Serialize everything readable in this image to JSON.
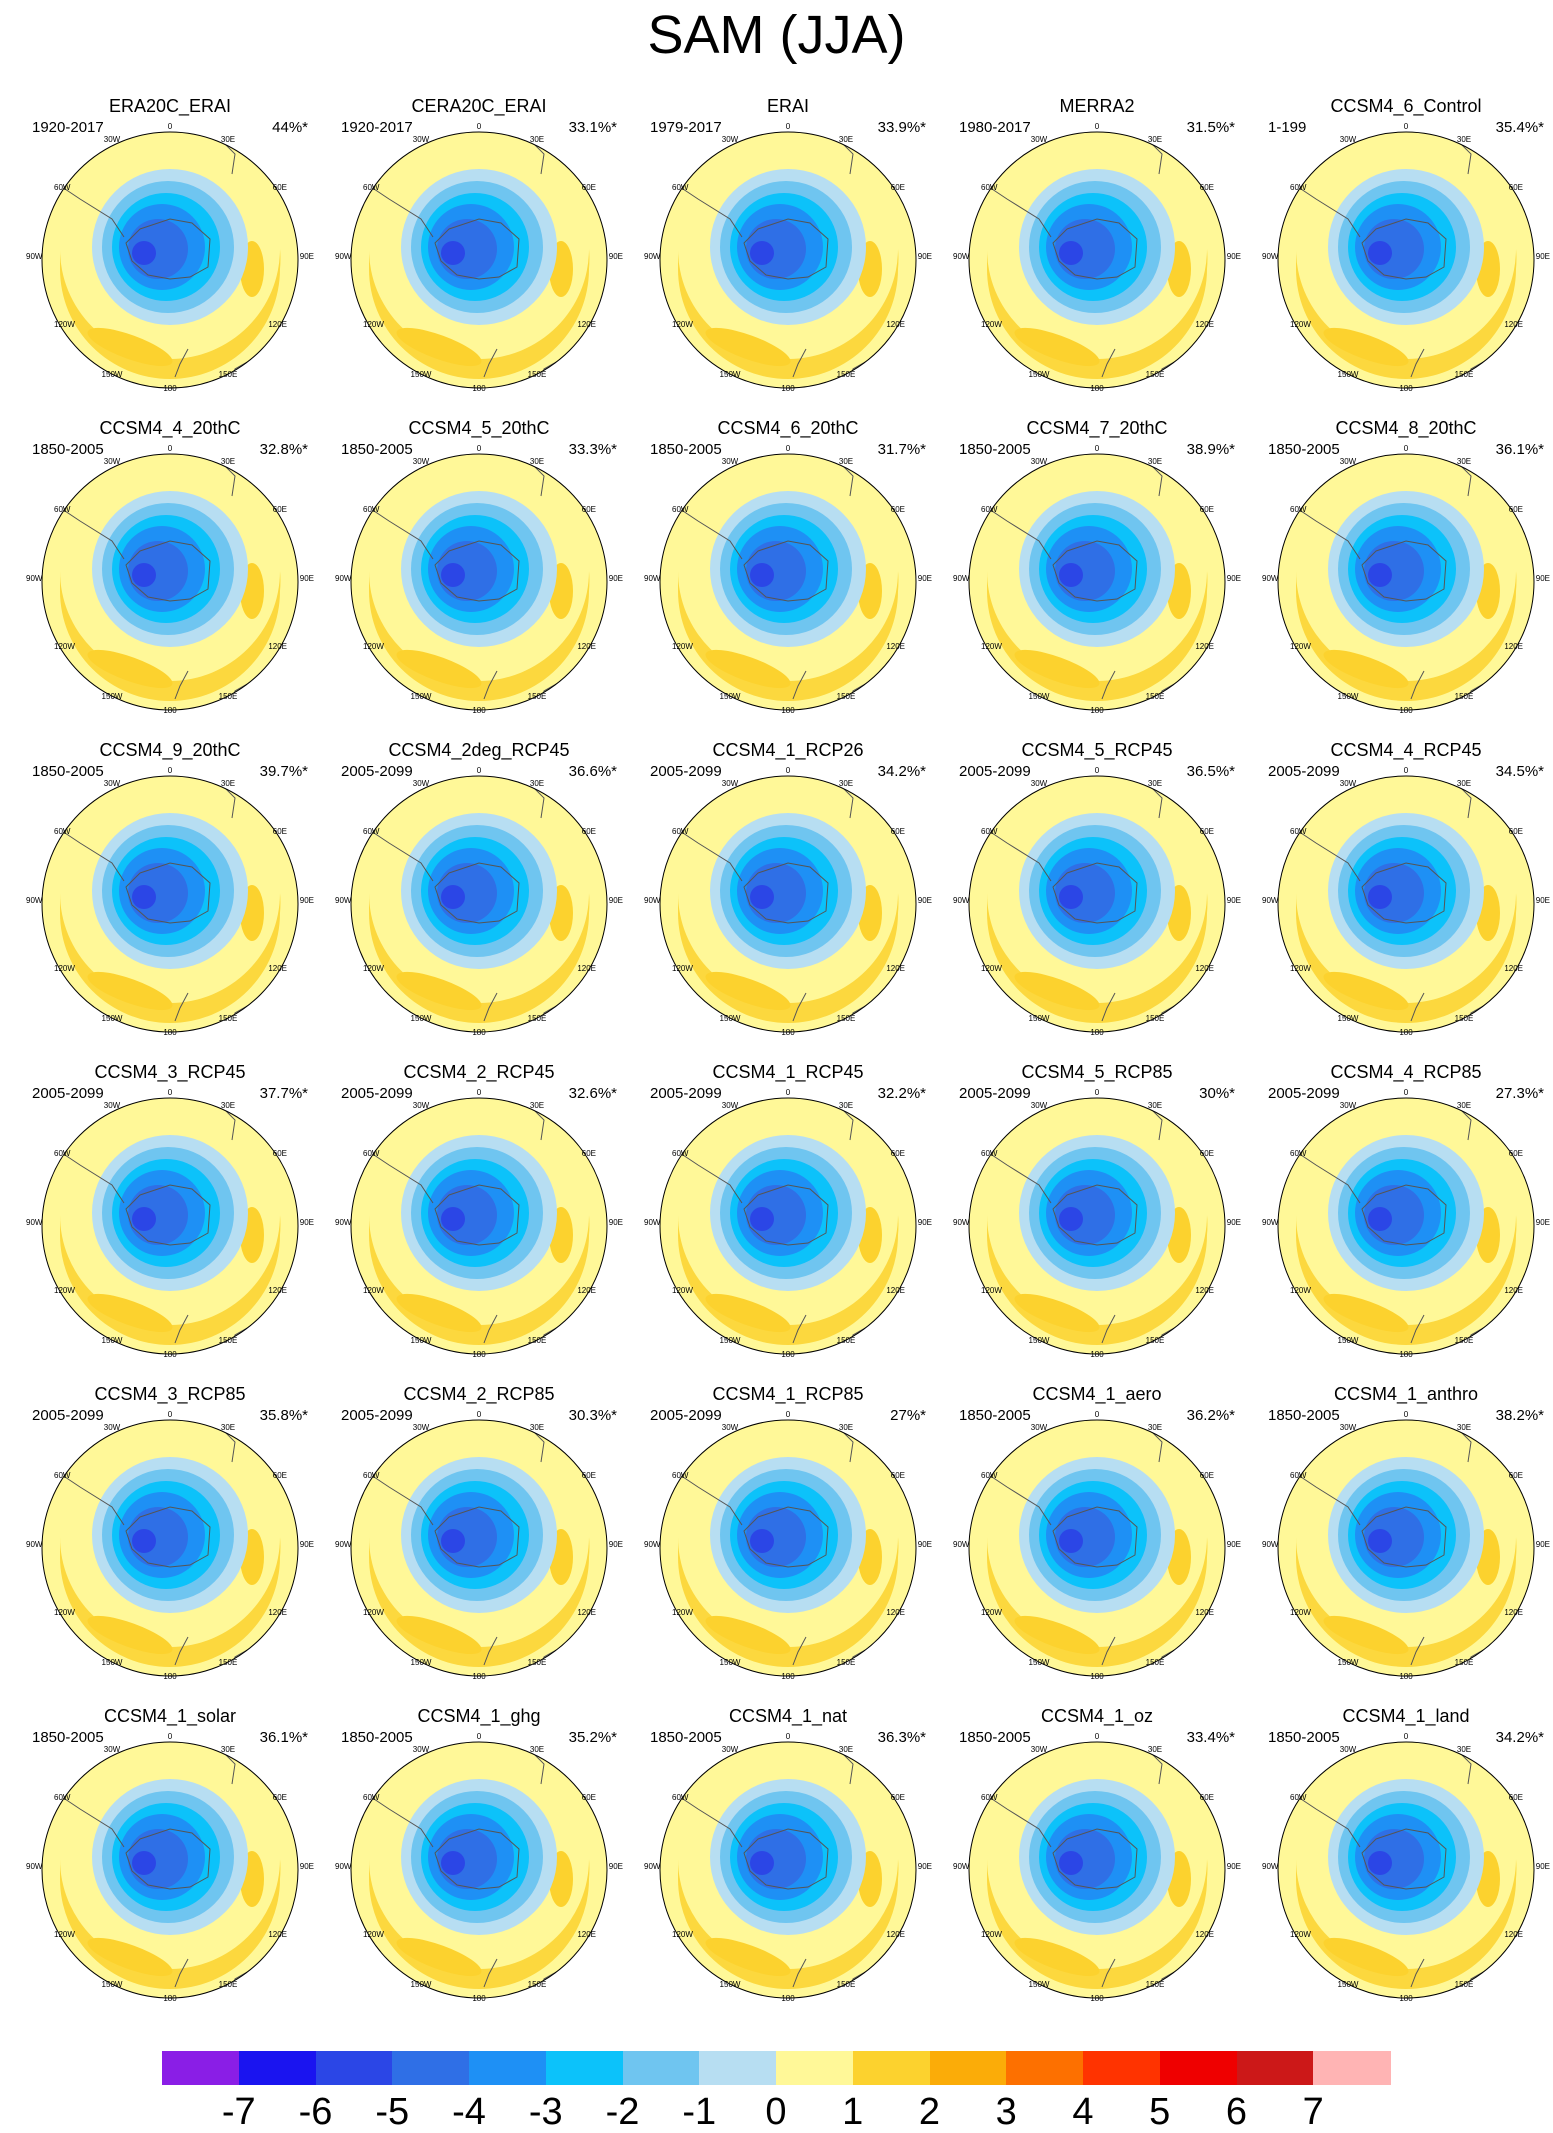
{
  "title": "SAM (JJA)",
  "palette": [
    "#8a1ee6",
    "#1a14f0",
    "#2b46e6",
    "#2f6fe6",
    "#1e90f5",
    "#0cc2fa",
    "#6fc5f0",
    "#b7def2",
    "#fff898",
    "#fcd22e",
    "#fbac08",
    "#fd7000",
    "#ff3300",
    "#ef0000",
    "#cc1818",
    "#ffb4b4"
  ],
  "colorbar": {
    "labels": [
      "-7",
      "-6",
      "-5",
      "-4",
      "-3",
      "-2",
      "-1",
      "0",
      "1",
      "2",
      "3",
      "4",
      "5",
      "6",
      "7"
    ]
  },
  "map_labels": {
    "top": "0",
    "top_left": "30W",
    "top_right": "30E",
    "left_upper": "60W",
    "right_upper": "60E",
    "left": "90W",
    "right": "90E",
    "left_lower": "120W",
    "right_lower": "120E",
    "bottom_left": "150W",
    "bottom_right": "150E",
    "bottom": "180"
  },
  "panels": [
    {
      "name": "ERA20C_ERAI",
      "period": "1920-2017",
      "variance": "44%*"
    },
    {
      "name": "CERA20C_ERAI",
      "period": "1920-2017",
      "variance": "33.1%*"
    },
    {
      "name": "ERAI",
      "period": "1979-2017",
      "variance": "33.9%*"
    },
    {
      "name": "MERRA2",
      "period": "1980-2017",
      "variance": "31.5%*"
    },
    {
      "name": "CCSM4_6_Control",
      "period": "1-199",
      "variance": "35.4%*"
    },
    {
      "name": "CCSM4_4_20thC",
      "period": "1850-2005",
      "variance": "32.8%*"
    },
    {
      "name": "CCSM4_5_20thC",
      "period": "1850-2005",
      "variance": "33.3%*"
    },
    {
      "name": "CCSM4_6_20thC",
      "period": "1850-2005",
      "variance": "31.7%*"
    },
    {
      "name": "CCSM4_7_20thC",
      "period": "1850-2005",
      "variance": "38.9%*"
    },
    {
      "name": "CCSM4_8_20thC",
      "period": "1850-2005",
      "variance": "36.1%*"
    },
    {
      "name": "CCSM4_9_20thC",
      "period": "1850-2005",
      "variance": "39.7%*"
    },
    {
      "name": "CCSM4_2deg_RCP45",
      "period": "2005-2099",
      "variance": "36.6%*"
    },
    {
      "name": "CCSM4_1_RCP26",
      "period": "2005-2099",
      "variance": "34.2%*"
    },
    {
      "name": "CCSM4_5_RCP45",
      "period": "2005-2099",
      "variance": "36.5%*"
    },
    {
      "name": "CCSM4_4_RCP45",
      "period": "2005-2099",
      "variance": "34.5%*"
    },
    {
      "name": "CCSM4_3_RCP45",
      "period": "2005-2099",
      "variance": "37.7%*"
    },
    {
      "name": "CCSM4_2_RCP45",
      "period": "2005-2099",
      "variance": "32.6%*"
    },
    {
      "name": "CCSM4_1_RCP45",
      "period": "2005-2099",
      "variance": "32.2%*"
    },
    {
      "name": "CCSM4_5_RCP85",
      "period": "2005-2099",
      "variance": "30%*"
    },
    {
      "name": "CCSM4_4_RCP85",
      "period": "2005-2099",
      "variance": "27.3%*"
    },
    {
      "name": "CCSM4_3_RCP85",
      "period": "2005-2099",
      "variance": "35.8%*"
    },
    {
      "name": "CCSM4_2_RCP85",
      "period": "2005-2099",
      "variance": "30.3%*"
    },
    {
      "name": "CCSM4_1_RCP85",
      "period": "2005-2099",
      "variance": "27%*"
    },
    {
      "name": "CCSM4_1_aero",
      "period": "1850-2005",
      "variance": "36.2%*"
    },
    {
      "name": "CCSM4_1_anthro",
      "period": "1850-2005",
      "variance": "38.2%*"
    },
    {
      "name": "CCSM4_1_solar",
      "period": "1850-2005",
      "variance": "36.1%*"
    },
    {
      "name": "CCSM4_1_ghg",
      "period": "1850-2005",
      "variance": "35.2%*"
    },
    {
      "name": "CCSM4_1_nat",
      "period": "1850-2005",
      "variance": "36.3%*"
    },
    {
      "name": "CCSM4_1_oz",
      "period": "1850-2005",
      "variance": "33.4%*"
    },
    {
      "name": "CCSM4_1_land",
      "period": "1850-2005",
      "variance": "34.2%*"
    }
  ]
}
